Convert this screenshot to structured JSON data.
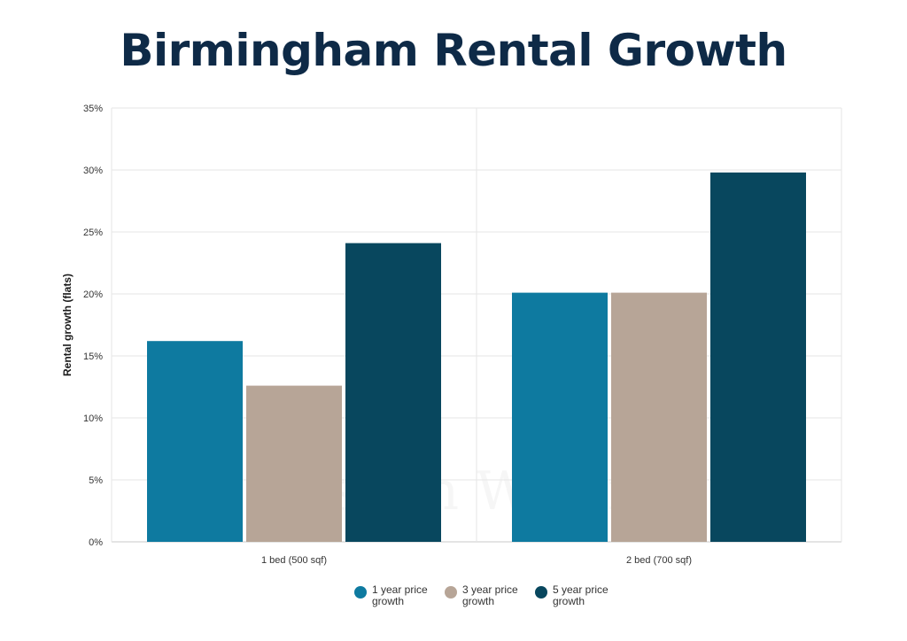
{
  "title": "Birmingham Rental Growth",
  "watermark_text": "Aspen Woolf",
  "chart_data": {
    "type": "bar",
    "ylabel": "Rental growth (flats)",
    "xlabel": "",
    "ylim": [
      0,
      35
    ],
    "yticks": [
      "0%",
      "5%",
      "10%",
      "15%",
      "20%",
      "25%",
      "30%",
      "35%"
    ],
    "categories": [
      "1 bed (500 sqf)",
      "2 bed (700 sqf)"
    ],
    "series": [
      {
        "name": "1 year price growth",
        "color": "#0e7aa0",
        "values": [
          16.2,
          20.1
        ]
      },
      {
        "name": "3 year price growth",
        "color": "#b7a597",
        "values": [
          12.6,
          20.1
        ]
      },
      {
        "name": "5 year price growth",
        "color": "#08475e",
        "values": [
          24.1,
          29.8
        ]
      }
    ],
    "grid": true,
    "legend": "bottom"
  }
}
